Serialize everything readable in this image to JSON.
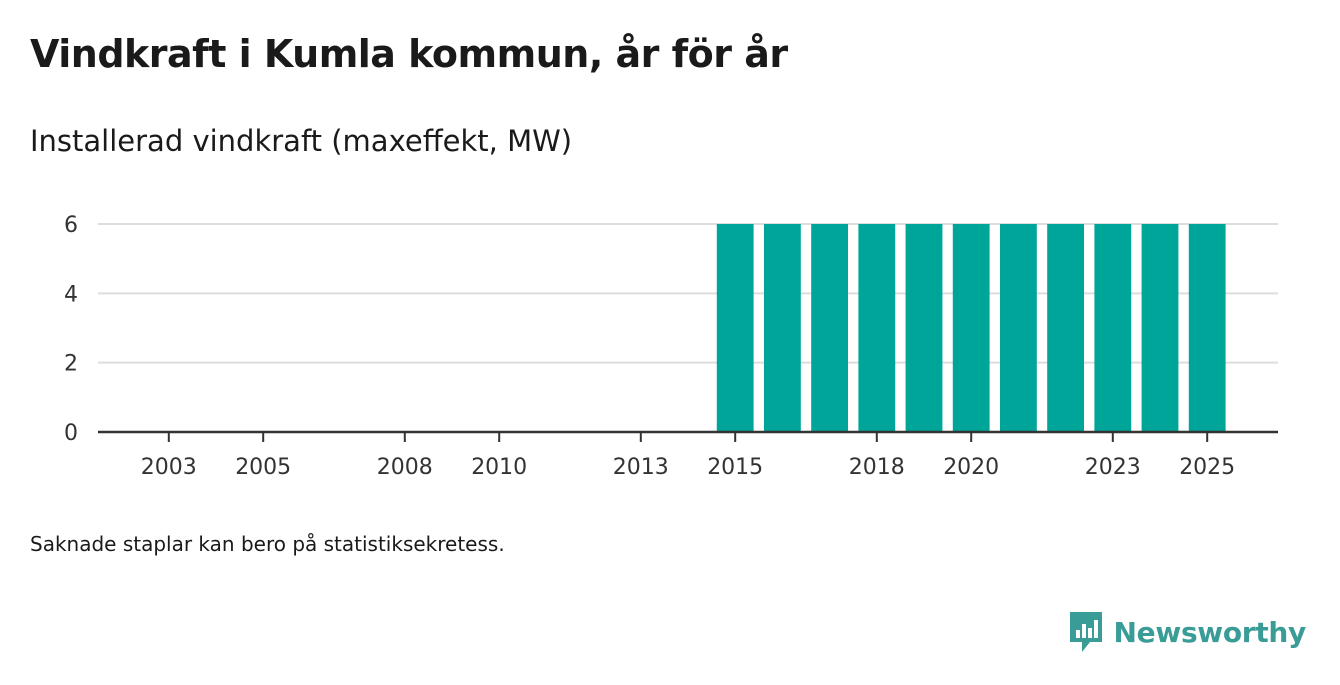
{
  "title": "Vindkraft i Kumla kommun, år för år",
  "subtitle": "Installerad vindkraft (maxeffekt, MW)",
  "note": "Saknade staplar kan bero på statistiksekretess.",
  "brand": {
    "name": "Newsworthy",
    "icon": "newsworthy-logo-icon",
    "color": "#3a9c96"
  },
  "colors": {
    "bar": "#00a59a",
    "grid": "#dddddd",
    "axis": "#333333"
  },
  "chart_data": {
    "type": "bar",
    "title": "Vindkraft i Kumla kommun, år för år",
    "ylabel": "Installerad vindkraft (maxeffekt, MW)",
    "xlabel": "",
    "ylim": [
      0,
      6
    ],
    "yticks": [
      0,
      2,
      4,
      6
    ],
    "xlim": [
      2001.5,
      2026.5
    ],
    "xticks": [
      2003,
      2005,
      2008,
      2010,
      2013,
      2015,
      2018,
      2020,
      2023,
      2025
    ],
    "grid": true,
    "categories": [
      2015,
      2016,
      2017,
      2018,
      2019,
      2020,
      2021,
      2022,
      2023,
      2024,
      2025
    ],
    "values": [
      6,
      6,
      6,
      6,
      6,
      6,
      6,
      6,
      6,
      6,
      6
    ]
  }
}
